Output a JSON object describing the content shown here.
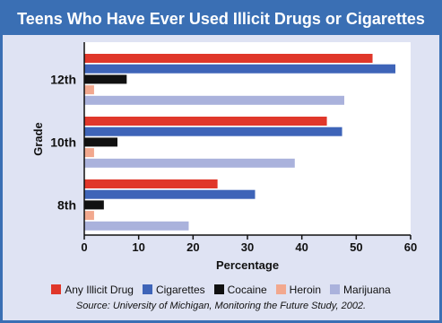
{
  "chart_data": {
    "type": "bar",
    "orientation": "horizontal",
    "title": "Teens Who Have Ever Used Illicit Drugs or Cigarettes",
    "xlabel": "Percentage",
    "ylabel": "Grade",
    "xlim": [
      0,
      60
    ],
    "xticks": [
      0,
      10,
      20,
      30,
      40,
      50,
      60
    ],
    "categories": [
      "12th",
      "10th",
      "8th"
    ],
    "series": [
      {
        "name": "Any Illicit Drug",
        "color": "#e0372a",
        "values": [
          53,
          44.6,
          24.5
        ]
      },
      {
        "name": "Cigarettes",
        "color": "#3e64b8",
        "values": [
          57.2,
          47.4,
          31.4
        ]
      },
      {
        "name": "Cocaine",
        "color": "#111111",
        "values": [
          7.8,
          6.1,
          3.6
        ]
      },
      {
        "name": "Heroin",
        "color": "#f2a88e",
        "values": [
          1.8,
          1.8,
          1.8
        ]
      },
      {
        "name": "Marijuana",
        "color": "#aab2dc",
        "values": [
          47.8,
          38.7,
          19.2
        ]
      }
    ],
    "grid": false,
    "legend_position": "bottom",
    "source": "Source: University of Michigan, Monitoring the Future Study, 2002."
  }
}
